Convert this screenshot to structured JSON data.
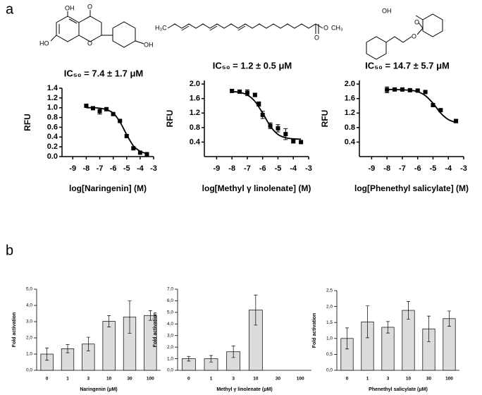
{
  "panel_labels": [
    "a",
    "b"
  ],
  "structures": {
    "naringenin": [
      "OH",
      "O",
      "HO",
      "O",
      "OH"
    ],
    "methyl_linolenate": [
      "H₃C",
      "O",
      "O",
      "CH₃"
    ],
    "phenethyl_salicylate": [
      "OH",
      "O",
      "O"
    ]
  },
  "chart_data": [
    {
      "type": "scatter",
      "title": "IC₅₀ = 7.4 ± 1.7 μM",
      "x_label": "log[Naringenin] (M)",
      "y_label": "RFU",
      "x": [
        -8,
        -7.5,
        -7,
        -6.5,
        -6,
        -5.5,
        -5,
        -4.5,
        -4,
        -3.5
      ],
      "values": [
        1.04,
        0.99,
        0.93,
        0.97,
        0.87,
        0.73,
        0.42,
        0.17,
        0.08,
        0.05
      ],
      "errors": [
        0.02,
        0.02,
        0.06,
        0.03,
        0.02,
        0.02,
        0.02,
        0.02,
        0.02,
        0.02
      ],
      "fit": {
        "x": [
          -8,
          -7.5,
          -7,
          -6.5,
          -6,
          -5.5,
          -5,
          -4.5,
          -4,
          -3.5
        ],
        "values": [
          1.0,
          1.0,
          0.99,
          0.96,
          0.89,
          0.71,
          0.45,
          0.22,
          0.11,
          0.06
        ]
      },
      "color": "#000000",
      "xlim": [
        -9.8,
        -3
      ],
      "xticks": [
        -9,
        -8,
        -7,
        -6,
        -5,
        -4,
        -3
      ],
      "ylim": [
        0,
        1.4
      ],
      "yticks": [
        {
          "value": 0,
          "label": "0.0"
        },
        0.2,
        0.4,
        0.6,
        0.8,
        {
          "value": 1,
          "label": "1.0"
        },
        1.2,
        1.4
      ]
    },
    {
      "type": "scatter",
      "title": "IC₅₀ = 1.2 ± 0.5 μM",
      "x_label": "log[Methyl γ linolenate] (M)",
      "y_label": "RFU",
      "x": [
        -8,
        -7.5,
        -7,
        -6.5,
        -6.25,
        -6,
        -5.5,
        -5,
        -4.5,
        -4,
        -3.5
      ],
      "values": [
        1.81,
        1.79,
        1.76,
        1.7,
        1.45,
        1.15,
        0.85,
        0.78,
        0.62,
        0.42,
        0.4
      ],
      "errors": [
        0.03,
        0.04,
        0.08,
        0.05,
        0.06,
        0.1,
        0.08,
        0.1,
        0.15,
        0.04,
        0.03
      ],
      "fit": {
        "x": [
          -8,
          -7.5,
          -7,
          -6.5,
          -6,
          -5.5,
          -5,
          -4.5,
          -4,
          -3.5
        ],
        "values": [
          1.79,
          1.77,
          1.7,
          1.52,
          1.2,
          0.84,
          0.61,
          0.52,
          0.49,
          0.48
        ]
      },
      "color": "#000000",
      "xlim": [
        -9.8,
        -3
      ],
      "xticks": [
        -9,
        -8,
        -7,
        -6,
        -5,
        -4,
        -3
      ],
      "ylim": [
        0,
        2.1
      ],
      "yticks": [
        0.4,
        0.8,
        1.2,
        1.6,
        {
          "value": 2,
          "label": "2.0"
        }
      ]
    },
    {
      "type": "scatter",
      "title": "IC₅₀ = 14.7 ± 5.7 μM",
      "x_label": "log[Phenethyl salicylate] (M)",
      "y_label": "RFU",
      "x": [
        -8,
        -7.5,
        -7,
        -6.5,
        -6,
        -5.5,
        -5,
        -4.5,
        -3.5
      ],
      "values": [
        1.84,
        1.85,
        1.85,
        1.83,
        1.82,
        1.78,
        1.42,
        1.28,
        0.98
      ],
      "errors": [
        0.08,
        0.03,
        0.03,
        0.03,
        0.03,
        0.03,
        0.03,
        0.03,
        0.05
      ],
      "fit": {
        "x": [
          -8,
          -7.5,
          -7,
          -6.5,
          -6,
          -5.5,
          -5,
          -4.5,
          -4,
          -3.5
        ],
        "values": [
          1.85,
          1.85,
          1.84,
          1.83,
          1.79,
          1.68,
          1.47,
          1.2,
          1.02,
          0.94
        ]
      },
      "color": "#000000",
      "xlim": [
        -9.8,
        -3
      ],
      "xticks": [
        -9,
        -8,
        -7,
        -6,
        -5,
        -4,
        -3
      ],
      "ylim": [
        0,
        2.1
      ],
      "yticks": [
        0.4,
        0.8,
        1.2,
        1.6,
        {
          "value": 2,
          "label": "2.0"
        }
      ]
    },
    {
      "type": "bar",
      "x_label": "Naringenin (μM)",
      "y_label": "Fold activation",
      "categories": [
        "0",
        "1",
        "3",
        "10",
        "30",
        "100"
      ],
      "values": [
        1.0,
        1.33,
        1.62,
        3.02,
        3.28,
        3.38
      ],
      "errors": [
        0.38,
        0.25,
        0.42,
        0.35,
        1.0,
        0.3
      ],
      "color": "#dcdcdc",
      "ylim": [
        0,
        5
      ],
      "yticks": [
        {
          "value": 0,
          "label": "0,0"
        },
        {
          "value": 1,
          "label": "1,0"
        },
        {
          "value": 2,
          "label": "2,0"
        },
        {
          "value": 3,
          "label": "3,0"
        },
        {
          "value": 4,
          "label": "4,0"
        },
        {
          "value": 5,
          "label": "5,0"
        }
      ]
    },
    {
      "type": "bar",
      "x_label": "Methyl γ linolenate (μM)",
      "y_label": "Fold activation",
      "categories": [
        "0",
        "1",
        "3",
        "10",
        "30",
        "100"
      ],
      "values": [
        1.0,
        1.0,
        1.6,
        5.2,
        null,
        null
      ],
      "errors": [
        0.2,
        0.28,
        0.5,
        1.3,
        null,
        null
      ],
      "color": "#dcdcdc",
      "ylim": [
        0,
        7
      ],
      "yticks": [
        {
          "value": 0,
          "label": "0,0"
        },
        {
          "value": 1,
          "label": "1,0"
        },
        {
          "value": 2,
          "label": "2,0"
        },
        {
          "value": 3,
          "label": "3,0"
        },
        {
          "value": 4,
          "label": "4,0"
        },
        {
          "value": 5,
          "label": "5,0"
        },
        {
          "value": 6,
          "label": "6,0"
        },
        {
          "value": 7,
          "label": "7,0"
        }
      ]
    },
    {
      "type": "bar",
      "x_label": "Phenethyl salicylate (μM)",
      "y_label": "Fold activation",
      "categories": [
        "0",
        "1",
        "3",
        "10",
        "30",
        "100"
      ],
      "values": [
        1.0,
        1.52,
        1.35,
        1.88,
        1.3,
        1.62
      ],
      "errors": [
        0.33,
        0.5,
        0.18,
        0.28,
        0.4,
        0.24
      ],
      "color": "#dcdcdc",
      "ylim": [
        0,
        2.5
      ],
      "yticks": [
        {
          "value": 0,
          "label": "0,0"
        },
        {
          "value": 0.5,
          "label": "0,5"
        },
        {
          "value": 1,
          "label": "1,0"
        },
        {
          "value": 1.5,
          "label": "1,5"
        },
        {
          "value": 2,
          "label": "2,0"
        },
        {
          "value": 2.5,
          "label": "2,5"
        }
      ]
    }
  ]
}
